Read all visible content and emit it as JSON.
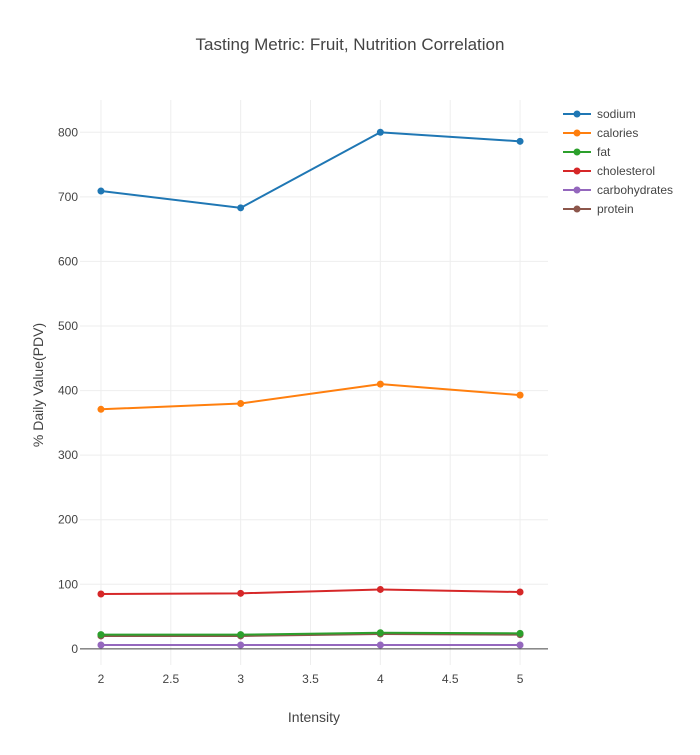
{
  "chart_data": {
    "type": "line",
    "title": "Tasting Metric: Fruit, Nutrition Correlation",
    "xlabel": "Intensity",
    "ylabel": "% Daily Value(PDV)",
    "x": [
      2,
      3,
      4,
      5
    ],
    "xlim": [
      1.85,
      5.2
    ],
    "ylim": [
      -25,
      850
    ],
    "xticks": [
      2,
      2.5,
      3,
      3.5,
      4,
      4.5,
      5
    ],
    "xtick_labels": [
      "2",
      "2.5",
      "3",
      "3.5",
      "4",
      "4.5",
      "5"
    ],
    "yticks": [
      0,
      100,
      200,
      300,
      400,
      500,
      600,
      700,
      800
    ],
    "ytick_labels": [
      "0",
      "100",
      "200",
      "300",
      "400",
      "500",
      "600",
      "700",
      "800"
    ],
    "grid": true,
    "legend_position": "top-right",
    "series": [
      {
        "name": "sodium",
        "color": "#1f77b4",
        "values": [
          709,
          683,
          800,
          786
        ]
      },
      {
        "name": "calories",
        "color": "#ff7f0e",
        "values": [
          371,
          380,
          410,
          393
        ]
      },
      {
        "name": "fat",
        "color": "#2ca02c",
        "values": [
          22,
          22,
          25,
          24
        ]
      },
      {
        "name": "cholesterol",
        "color": "#d62728",
        "values": [
          85,
          86,
          92,
          88
        ]
      },
      {
        "name": "carbohydrates",
        "color": "#9467bd",
        "values": [
          6,
          6,
          6,
          6
        ]
      },
      {
        "name": "protein",
        "color": "#8c564b",
        "values": [
          20,
          20,
          23,
          22
        ]
      }
    ]
  }
}
